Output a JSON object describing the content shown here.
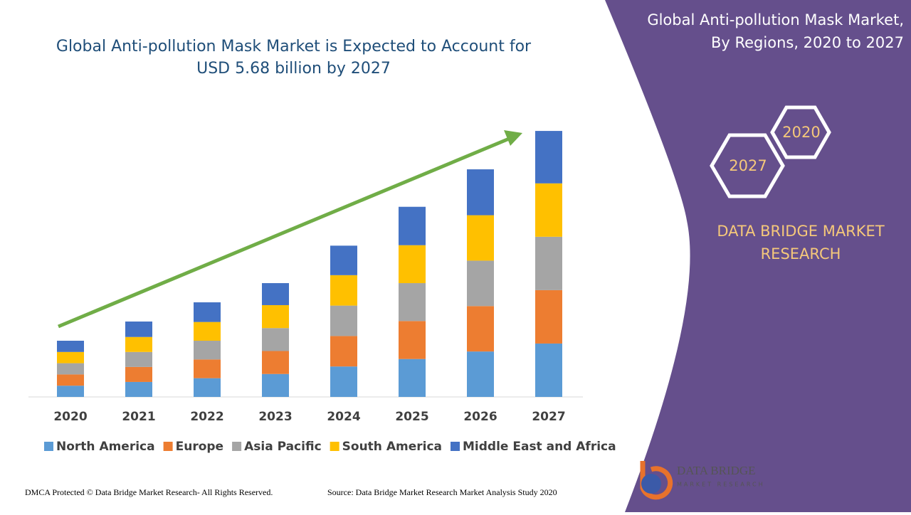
{
  "chart_data": {
    "type": "bar",
    "stacked": true,
    "title": "Global Anti-pollution Mask Market is Expected to Account for USD 5.68 billion by 2027",
    "categories": [
      "2020",
      "2021",
      "2022",
      "2023",
      "2024",
      "2025",
      "2026",
      "2027"
    ],
    "series": [
      {
        "name": "North America",
        "color": "#5b9bd5",
        "values": [
          0.24,
          0.32,
          0.4,
          0.49,
          0.65,
          0.81,
          0.97,
          1.14
        ]
      },
      {
        "name": "Europe",
        "color": "#ed7d31",
        "values": [
          0.24,
          0.32,
          0.4,
          0.49,
          0.65,
          0.81,
          0.97,
          1.14
        ]
      },
      {
        "name": "Asia Pacific",
        "color": "#a5a5a5",
        "values": [
          0.24,
          0.32,
          0.4,
          0.49,
          0.65,
          0.81,
          0.97,
          1.14
        ]
      },
      {
        "name": "South America",
        "color": "#ffc000",
        "values": [
          0.24,
          0.32,
          0.4,
          0.49,
          0.65,
          0.81,
          0.97,
          1.14
        ]
      },
      {
        "name": "Middle East and Africa",
        "color": "#4472c4",
        "values": [
          0.24,
          0.33,
          0.42,
          0.47,
          0.63,
          0.82,
          0.98,
          1.12
        ]
      }
    ],
    "ylim": [
      0,
      6
    ],
    "legend": "bottom"
  },
  "panel": {
    "title": [
      "Global Anti-pollution Mask Market,",
      "By Regions, 2020 to 2027"
    ],
    "hexagons": [
      "2020",
      "2027"
    ],
    "brand": [
      "DATA BRIDGE MARKET",
      "RESEARCH"
    ]
  },
  "logo": {
    "name": "DATA BRIDGE",
    "tagline": "MARKET RESEARCH"
  },
  "footer": {
    "rights": "DMCA Protected © Data Bridge Market Research- All Rights Reserved.",
    "source": "Source: Data Bridge Market Research Market Analysis Study 2020"
  }
}
